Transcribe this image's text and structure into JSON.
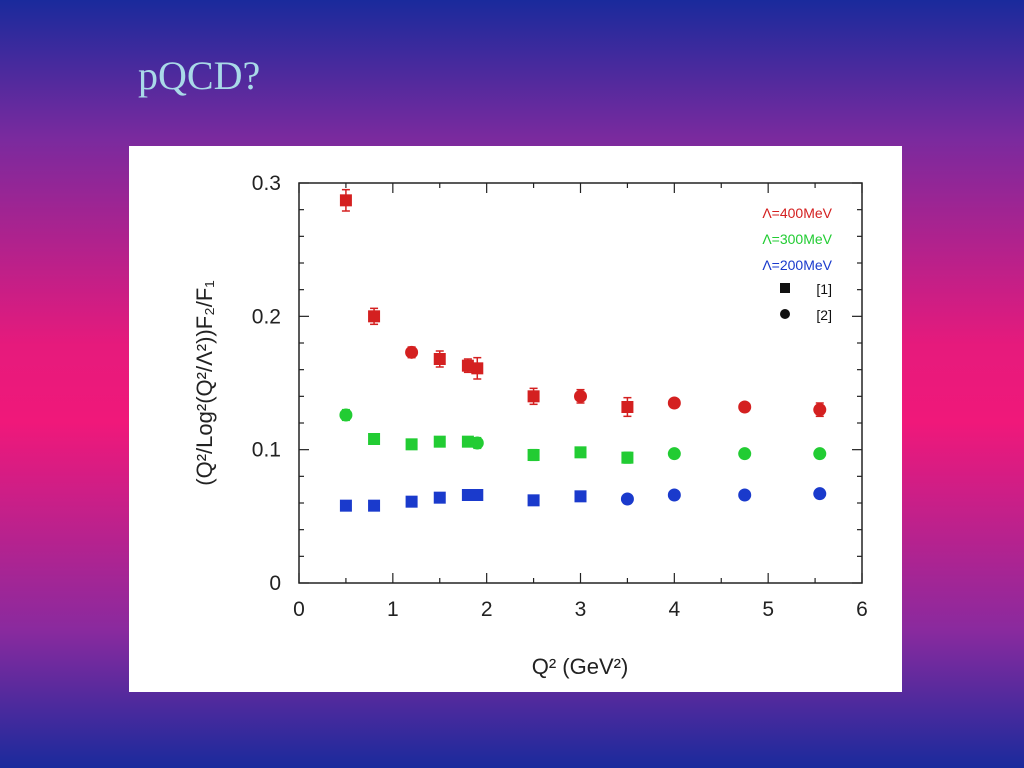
{
  "slide": {
    "title": "pQCD?"
  },
  "chart_data": {
    "type": "scatter",
    "xlabel": "Q² (GeV²)",
    "ylabel": "(Q²/Log²(Q²/Λ²))F₂/F₁",
    "xlim": [
      0,
      6
    ],
    "ylim": [
      0,
      0.3
    ],
    "x_ticks": [
      "0",
      "1",
      "2",
      "3",
      "4",
      "5",
      "6"
    ],
    "y_ticks": [
      "0",
      "0.1",
      "0.2",
      "0.3"
    ],
    "grid": false,
    "legend_position": "top-right",
    "series": [
      {
        "name": "Λ=400MeV",
        "color": "#d42020",
        "points": [
          {
            "x": 0.5,
            "y": 0.287,
            "err": 0.008,
            "marker": "square"
          },
          {
            "x": 0.8,
            "y": 0.2,
            "err": 0.006,
            "marker": "square"
          },
          {
            "x": 1.2,
            "y": 0.173,
            "err": 0.004,
            "marker": "circle"
          },
          {
            "x": 1.5,
            "y": 0.168,
            "err": 0.006,
            "marker": "square"
          },
          {
            "x": 1.8,
            "y": 0.163,
            "err": 0.005,
            "marker": "square"
          },
          {
            "x": 1.9,
            "y": 0.161,
            "err": 0.008,
            "marker": "square"
          },
          {
            "x": 2.5,
            "y": 0.14,
            "err": 0.006,
            "marker": "square"
          },
          {
            "x": 3.0,
            "y": 0.14,
            "err": 0.005,
            "marker": "circle"
          },
          {
            "x": 3.5,
            "y": 0.132,
            "err": 0.007,
            "marker": "square"
          },
          {
            "x": 4.0,
            "y": 0.135,
            "err": 0.003,
            "marker": "circle"
          },
          {
            "x": 4.75,
            "y": 0.132,
            "err": 0.003,
            "marker": "circle"
          },
          {
            "x": 5.55,
            "y": 0.13,
            "err": 0.005,
            "marker": "circle"
          }
        ]
      },
      {
        "name": "Λ=300MeV",
        "color": "#22cc33",
        "points": [
          {
            "x": 0.5,
            "y": 0.126,
            "err": 0.004,
            "marker": "circle"
          },
          {
            "x": 0.8,
            "y": 0.108,
            "err": 0.003,
            "marker": "square"
          },
          {
            "x": 1.2,
            "y": 0.104,
            "err": 0.002,
            "marker": "square"
          },
          {
            "x": 1.5,
            "y": 0.106,
            "err": 0.003,
            "marker": "square"
          },
          {
            "x": 1.8,
            "y": 0.106,
            "err": 0.002,
            "marker": "square"
          },
          {
            "x": 1.9,
            "y": 0.105,
            "err": 0.004,
            "marker": "circle"
          },
          {
            "x": 2.5,
            "y": 0.096,
            "err": 0.004,
            "marker": "square"
          },
          {
            "x": 3.0,
            "y": 0.098,
            "err": 0.003,
            "marker": "square"
          },
          {
            "x": 3.5,
            "y": 0.094,
            "err": 0.004,
            "marker": "square"
          },
          {
            "x": 4.0,
            "y": 0.097,
            "err": 0.002,
            "marker": "circle"
          },
          {
            "x": 4.75,
            "y": 0.097,
            "err": 0.002,
            "marker": "circle"
          },
          {
            "x": 5.55,
            "y": 0.097,
            "err": 0.002,
            "marker": "circle"
          }
        ]
      },
      {
        "name": "Λ=200MeV",
        "color": "#1a3acc",
        "points": [
          {
            "x": 0.5,
            "y": 0.058,
            "err": 0,
            "marker": "square"
          },
          {
            "x": 0.8,
            "y": 0.058,
            "err": 0,
            "marker": "square"
          },
          {
            "x": 1.2,
            "y": 0.061,
            "err": 0,
            "marker": "square"
          },
          {
            "x": 1.5,
            "y": 0.064,
            "err": 0,
            "marker": "square"
          },
          {
            "x": 1.8,
            "y": 0.066,
            "err": 0,
            "marker": "square"
          },
          {
            "x": 1.9,
            "y": 0.066,
            "err": 0,
            "marker": "square"
          },
          {
            "x": 2.5,
            "y": 0.062,
            "err": 0,
            "marker": "square"
          },
          {
            "x": 3.0,
            "y": 0.065,
            "err": 0,
            "marker": "square"
          },
          {
            "x": 3.5,
            "y": 0.063,
            "err": 0,
            "marker": "circle"
          },
          {
            "x": 4.0,
            "y": 0.066,
            "err": 0,
            "marker": "circle"
          },
          {
            "x": 4.75,
            "y": 0.066,
            "err": 0,
            "marker": "circle"
          },
          {
            "x": 5.55,
            "y": 0.067,
            "err": 0,
            "marker": "circle"
          }
        ]
      }
    ],
    "marker_legend": [
      {
        "marker": "square",
        "label": "[1]"
      },
      {
        "marker": "circle",
        "label": "[2]"
      }
    ]
  }
}
